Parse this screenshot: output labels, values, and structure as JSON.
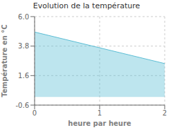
{
  "chart_data": {
    "type": "area",
    "title": "Evolution de la température",
    "xlabel": "heure par heure",
    "ylabel": "Température en °C",
    "x": [
      0,
      2
    ],
    "values": [
      4.85,
      2.5
    ],
    "color": "#5bbdd4",
    "xlim": [
      0,
      2
    ],
    "ylim": [
      -0.6,
      6.0
    ],
    "xticks": [
      0,
      1,
      2
    ],
    "yticks": [
      -0.6,
      1.6,
      3.8,
      {
        "value": 6.0,
        "label": "6.0"
      }
    ],
    "grid": true
  }
}
